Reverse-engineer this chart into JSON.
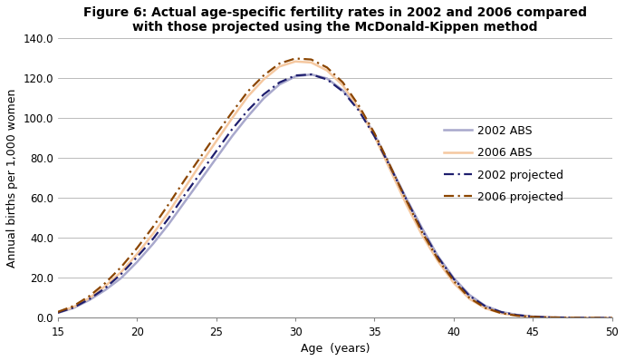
{
  "title": "Figure 6: Actual age-specific fertility rates in 2002 and 2006 compared\nwith those projected using the McDonald-Kippen method",
  "xlabel": "Age  (years)",
  "ylabel": "Annual births per 1,000 women",
  "xlim": [
    15,
    50
  ],
  "ylim": [
    0,
    140
  ],
  "yticks": [
    0.0,
    20.0,
    40.0,
    60.0,
    80.0,
    100.0,
    120.0,
    140.0
  ],
  "xticks": [
    15,
    20,
    25,
    30,
    35,
    40,
    45,
    50
  ],
  "ages": [
    15,
    16,
    17,
    18,
    19,
    20,
    21,
    22,
    23,
    24,
    25,
    26,
    27,
    28,
    29,
    30,
    31,
    32,
    33,
    34,
    35,
    36,
    37,
    38,
    39,
    40,
    41,
    42,
    43,
    44,
    45,
    46,
    47,
    48,
    49,
    50
  ],
  "abs_2002": [
    2.5,
    5.0,
    9.0,
    14.0,
    20.0,
    28.0,
    37.0,
    47.0,
    58.0,
    69.0,
    80.0,
    91.0,
    101.0,
    110.0,
    117.0,
    121.0,
    122.0,
    120.0,
    114.0,
    105.0,
    92.0,
    76.0,
    60.0,
    45.0,
    31.0,
    20.0,
    11.5,
    6.0,
    3.0,
    1.5,
    0.7,
    0.3,
    0.15,
    0.07,
    0.03,
    0.01
  ],
  "abs_2006": [
    2.8,
    5.5,
    10.0,
    16.0,
    23.0,
    32.0,
    42.0,
    53.0,
    65.0,
    77.0,
    88.5,
    100.0,
    111.0,
    119.5,
    126.0,
    128.5,
    128.0,
    124.0,
    116.5,
    105.0,
    91.0,
    74.0,
    57.0,
    41.5,
    28.5,
    17.5,
    9.5,
    4.8,
    2.3,
    1.1,
    0.5,
    0.25,
    0.12,
    0.06,
    0.03,
    0.01
  ],
  "proj_2002": [
    2.6,
    5.2,
    9.5,
    15.0,
    22.0,
    30.5,
    39.5,
    50.0,
    61.5,
    72.5,
    83.5,
    94.5,
    104.0,
    112.0,
    118.0,
    121.5,
    122.0,
    119.5,
    113.5,
    104.0,
    91.0,
    75.5,
    59.5,
    44.0,
    30.5,
    19.5,
    11.0,
    5.8,
    2.9,
    1.4,
    0.65,
    0.28,
    0.13,
    0.07,
    0.03,
    0.01
  ],
  "proj_2006": [
    3.0,
    6.0,
    11.0,
    17.5,
    25.5,
    35.0,
    45.5,
    57.0,
    69.0,
    80.5,
    92.0,
    103.0,
    113.5,
    121.5,
    127.5,
    130.0,
    129.5,
    125.5,
    118.0,
    106.5,
    92.5,
    76.0,
    59.0,
    43.0,
    29.5,
    18.5,
    10.0,
    5.0,
    2.4,
    1.1,
    0.5,
    0.24,
    0.11,
    0.05,
    0.02,
    0.01
  ],
  "color_2002_abs": "#a8a8cc",
  "color_2006_abs": "#f5c8a0",
  "color_2002_proj": "#1e1e6e",
  "color_2006_proj": "#8b4500",
  "title_fontsize": 10,
  "axis_label_fontsize": 9,
  "tick_fontsize": 8.5,
  "legend_fontsize": 9
}
